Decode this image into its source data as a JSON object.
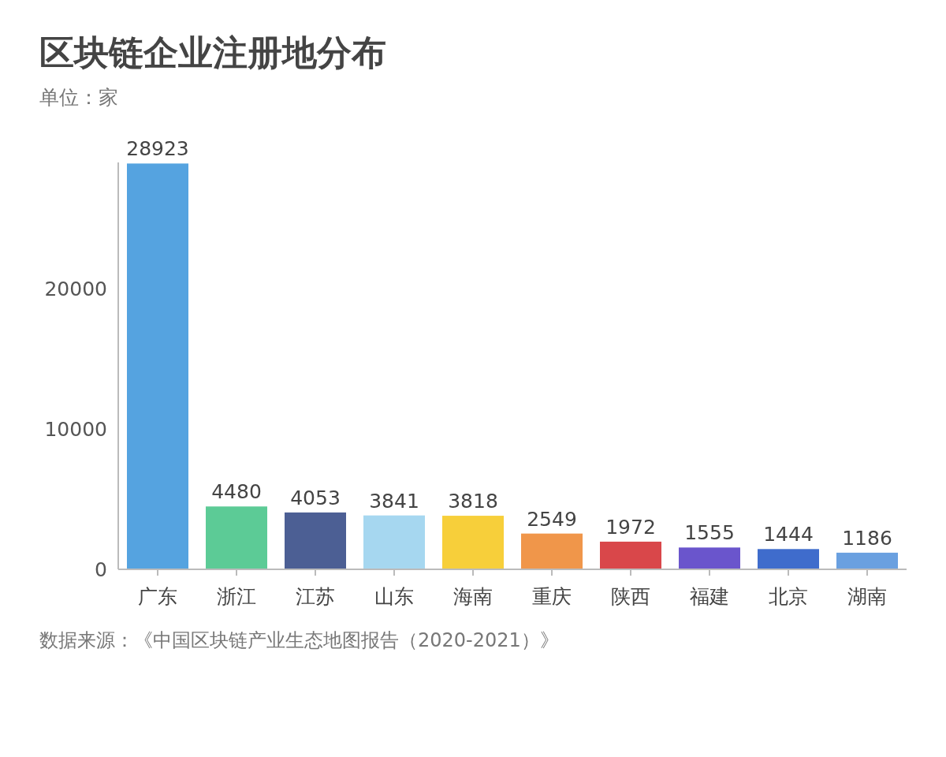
{
  "chart_data": {
    "type": "bar",
    "title": "区块链企业注册地分布",
    "subtitle": "单位：家",
    "categories": [
      "广东",
      "浙江",
      "江苏",
      "山东",
      "海南",
      "重庆",
      "陕西",
      "福建",
      "北京",
      "湖南"
    ],
    "values": [
      28923,
      4480,
      4053,
      3841,
      3818,
      2549,
      1972,
      1555,
      1444,
      1186
    ],
    "colors": [
      "#55a3e0",
      "#5ccb96",
      "#4c5f94",
      "#a6d7f0",
      "#f7cf3a",
      "#f0964a",
      "#d9474a",
      "#6a55cc",
      "#3f6ccc",
      "#6aa0e0"
    ],
    "ylim": [
      0,
      29000
    ],
    "yticks": [
      0,
      10000,
      20000
    ],
    "data_labels": true,
    "annotations": [
      "数据来源：《中国区块链产业生态地图报告（2020-2021）》"
    ]
  }
}
